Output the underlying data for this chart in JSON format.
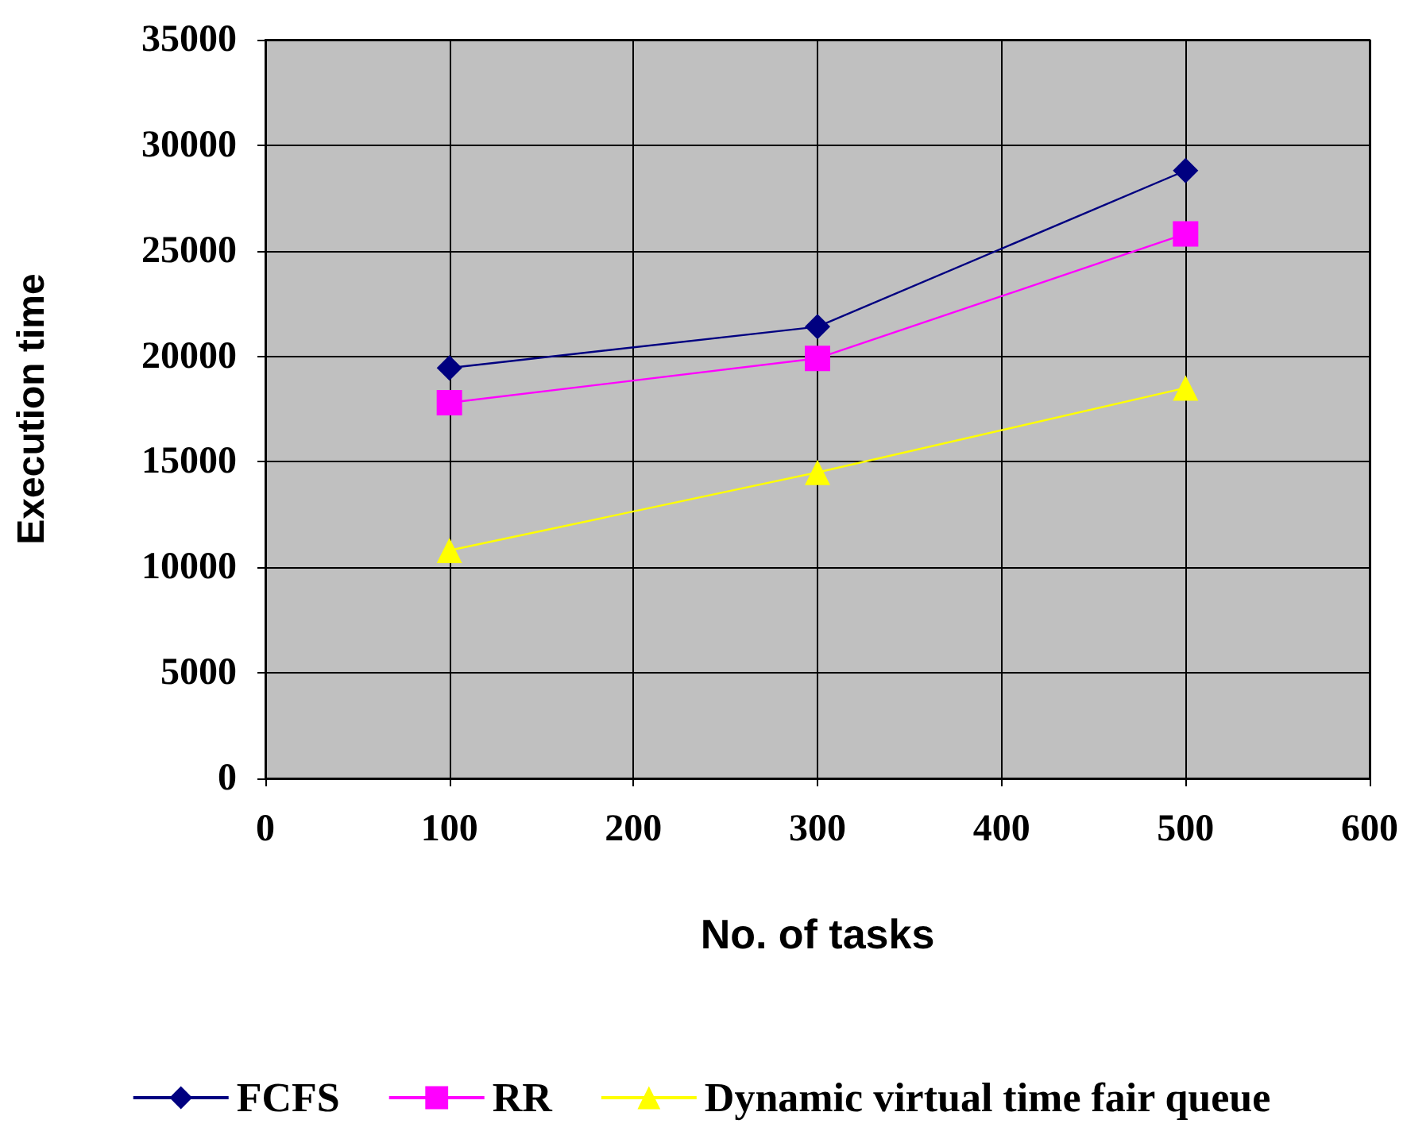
{
  "chart_data": {
    "type": "line",
    "xlabel": "No. of tasks",
    "ylabel": "Execution time",
    "x": [
      100,
      300,
      500
    ],
    "series": [
      {
        "name": "FCFS",
        "color": "#000080",
        "marker": "diamond",
        "values": [
          19450,
          21400,
          28800
        ]
      },
      {
        "name": "RR",
        "color": "#ff00ff",
        "marker": "square",
        "values": [
          17800,
          19900,
          25800
        ]
      },
      {
        "name": "Dynamic virtual time fair queue",
        "color": "#ffff00",
        "marker": "triangle",
        "values": [
          10800,
          14500,
          18500
        ]
      }
    ],
    "xlim": [
      0,
      600
    ],
    "xticks": [
      0,
      100,
      200,
      300,
      400,
      500,
      600
    ],
    "ylim": [
      0,
      35000
    ],
    "yticks": [
      0,
      5000,
      10000,
      15000,
      20000,
      25000,
      30000,
      35000
    ],
    "grid": true,
    "legend": "bottom",
    "line_style": "solid"
  }
}
